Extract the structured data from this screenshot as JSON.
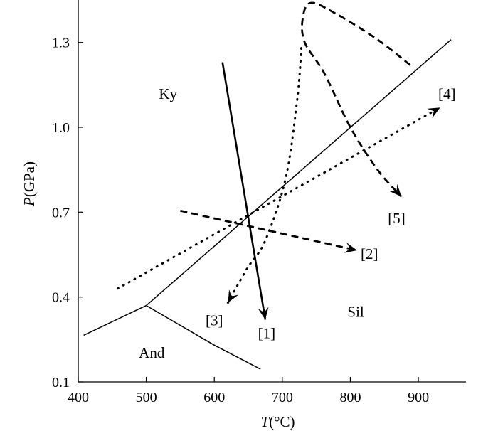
{
  "chart_data": {
    "type": "line",
    "xlabel_italic": "T",
    "xlabel_rest": "(°C)",
    "ylabel_italic": "P",
    "ylabel_rest": "(GPa)",
    "xlim": [
      400,
      970
    ],
    "ylim": [
      0.1,
      1.45
    ],
    "xticks": [
      {
        "value": 400,
        "label": "400"
      },
      {
        "value": 500,
        "label": "500"
      },
      {
        "value": 600,
        "label": "600"
      },
      {
        "value": 700,
        "label": "700"
      },
      {
        "value": 800,
        "label": "800"
      },
      {
        "value": 900,
        "label": "900"
      }
    ],
    "yticks": [
      {
        "value": 0.1,
        "label": "0.1"
      },
      {
        "value": 0.4,
        "label": "0.4"
      },
      {
        "value": 0.7,
        "label": "0.7"
      },
      {
        "value": 1.0,
        "label": "1.0"
      },
      {
        "value": 1.3,
        "label": "1.3"
      }
    ],
    "boundaries": [
      {
        "name": "ky-sil",
        "points": [
          [
            500,
            0.37
          ],
          [
            948,
            1.31
          ]
        ]
      },
      {
        "name": "and-ky",
        "points": [
          [
            408,
            0.265
          ],
          [
            500,
            0.37
          ]
        ]
      },
      {
        "name": "and-sil",
        "points": [
          [
            500,
            0.37
          ],
          [
            600,
            0.23
          ],
          [
            668,
            0.145
          ]
        ]
      }
    ],
    "regions": [
      {
        "label": "Ky",
        "x": 532,
        "y": 1.1
      },
      {
        "label": "Sil",
        "x": 808,
        "y": 0.33
      },
      {
        "label": "And",
        "x": 508,
        "y": 0.185
      }
    ],
    "paths": [
      {
        "label": "[1]",
        "style": "solid",
        "points": [
          [
            612,
            1.23
          ],
          [
            675,
            0.32
          ]
        ],
        "label_at": [
          677,
          0.255
        ]
      },
      {
        "label": "[2]",
        "style": "dashed",
        "points": [
          [
            550,
            0.705
          ],
          [
            810,
            0.565
          ]
        ],
        "label_at": [
          828,
          0.535
        ]
      },
      {
        "label": "[3]",
        "style": "dotted",
        "points": [
          [
            728,
            1.28
          ],
          [
            722,
            1.1
          ],
          [
            705,
            0.82
          ],
          [
            675,
            0.6
          ],
          [
            648,
            0.5
          ],
          [
            620,
            0.38
          ]
        ],
        "label_at": [
          600,
          0.3
        ]
      },
      {
        "label": "[4]",
        "style": "dotted",
        "points": [
          [
            458,
            0.43
          ],
          [
            680,
            0.73
          ],
          [
            932,
            1.07
          ]
        ],
        "label_at": [
          942,
          1.1
        ]
      },
      {
        "label": "[5]",
        "style": "dashed",
        "points": [
          [
            888,
            1.22
          ],
          [
            840,
            1.31
          ],
          [
            780,
            1.4
          ],
          [
            742,
            1.44
          ],
          [
            730,
            1.385
          ],
          [
            733,
            1.3
          ],
          [
            762,
            1.19
          ],
          [
            800,
            1.0
          ],
          [
            840,
            0.85
          ],
          [
            875,
            0.755
          ]
        ],
        "label_at": [
          868,
          0.66
        ]
      }
    ]
  }
}
